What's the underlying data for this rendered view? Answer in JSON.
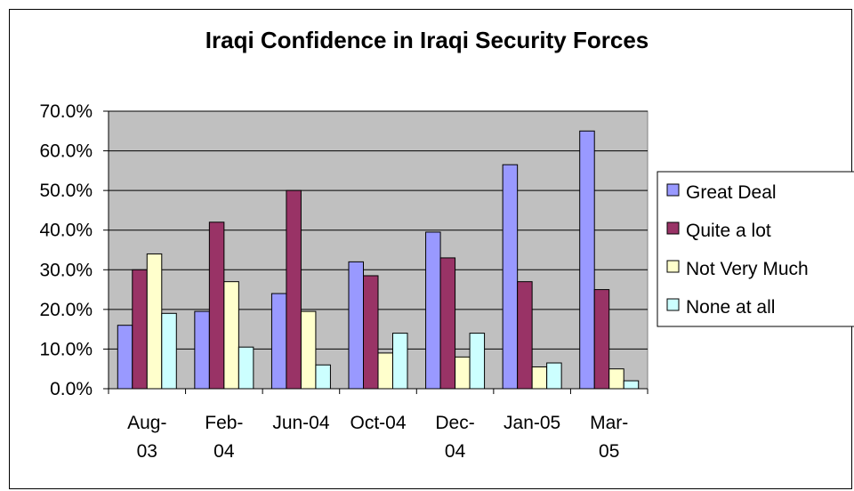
{
  "chart_data": {
    "type": "bar",
    "title": "Iraqi Confidence in Iraqi Security Forces",
    "categories": [
      "Aug-03",
      "Feb-04",
      "Jun-04",
      "Oct-04",
      "Dec-04",
      "Jan-05",
      "Mar-05"
    ],
    "category_label_lines": [
      [
        "Aug-",
        "03"
      ],
      [
        "Feb-",
        "04"
      ],
      [
        "Jun-04"
      ],
      [
        "Oct-04"
      ],
      [
        "Dec-",
        "04"
      ],
      [
        "Jan-05"
      ],
      [
        "Mar-",
        "05"
      ]
    ],
    "series": [
      {
        "name": "Great Deal",
        "color": "#9999ff",
        "values": [
          16.0,
          19.5,
          24.0,
          32.0,
          39.5,
          56.5,
          65.0
        ]
      },
      {
        "name": "Quite a lot",
        "color": "#993366",
        "values": [
          30.0,
          42.0,
          50.0,
          28.5,
          33.0,
          27.0,
          25.0
        ]
      },
      {
        "name": "Not Very Much",
        "color": "#ffffcc",
        "values": [
          34.0,
          27.0,
          19.5,
          9.0,
          8.0,
          5.5,
          5.0
        ]
      },
      {
        "name": "None at all",
        "color": "#ccffff",
        "values": [
          19.0,
          10.5,
          6.0,
          14.0,
          14.0,
          6.5,
          2.0
        ]
      }
    ],
    "yticks": [
      "0.0%",
      "10.0%",
      "20.0%",
      "30.0%",
      "40.0%",
      "50.0%",
      "60.0%",
      "70.0%"
    ],
    "ylim": [
      0,
      70
    ],
    "ystep": 10,
    "grid": true,
    "plot_background": "#c0c0c0",
    "legend_position": "right"
  }
}
